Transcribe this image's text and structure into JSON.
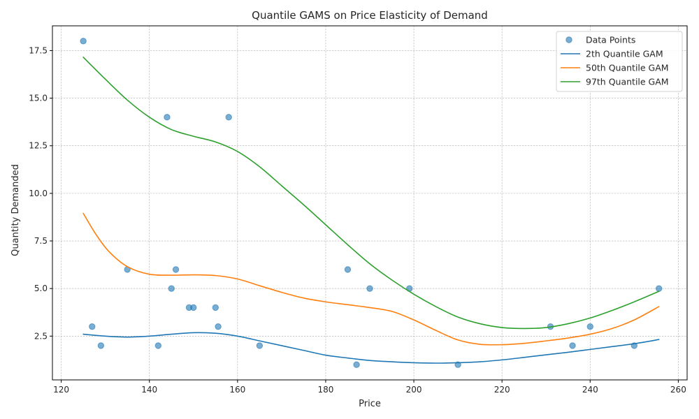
{
  "chart_data": {
    "type": "line",
    "title": "Quantile GAMS on Price Elasticity of Demand",
    "xlabel": "Price",
    "ylabel": "Quantity Demanded",
    "xlim": [
      118,
      262
    ],
    "ylim": [
      0.2,
      18.8
    ],
    "xticks": [
      120,
      140,
      160,
      180,
      200,
      220,
      240,
      260
    ],
    "yticks": [
      2.5,
      5.0,
      7.5,
      10.0,
      12.5,
      15.0,
      17.5
    ],
    "xtick_labels": [
      "120",
      "140",
      "160",
      "180",
      "200",
      "220",
      "240",
      "260"
    ],
    "ytick_labels": [
      "2.5",
      "5.0",
      "7.5",
      "10.0",
      "12.5",
      "15.0",
      "17.5"
    ],
    "grid": true,
    "legend_position": "top-right",
    "scatter": {
      "name": "Data Points",
      "color": "#1f77b4",
      "points": [
        [
          125,
          18
        ],
        [
          127,
          3
        ],
        [
          129,
          2
        ],
        [
          135,
          6
        ],
        [
          142,
          2
        ],
        [
          144,
          14
        ],
        [
          145,
          5
        ],
        [
          146,
          6
        ],
        [
          149,
          4
        ],
        [
          150,
          4
        ],
        [
          155,
          4
        ],
        [
          155.6,
          3
        ],
        [
          158,
          14
        ],
        [
          165,
          2
        ],
        [
          185,
          6
        ],
        [
          187,
          1
        ],
        [
          190,
          5
        ],
        [
          199,
          5
        ],
        [
          210,
          1
        ],
        [
          231,
          3
        ],
        [
          236,
          2
        ],
        [
          240,
          3
        ],
        [
          250,
          2
        ],
        [
          255.6,
          5
        ]
      ]
    },
    "series": [
      {
        "name": "2th Quantile GAM",
        "color": "#1f77b4",
        "x": [
          125,
          130,
          135,
          140,
          145,
          150,
          155,
          160,
          165,
          170,
          175,
          180,
          185,
          190,
          195,
          200,
          205,
          210,
          215,
          220,
          225,
          230,
          235,
          240,
          245,
          250,
          255.6
        ],
        "y": [
          2.6,
          2.5,
          2.45,
          2.5,
          2.6,
          2.68,
          2.65,
          2.5,
          2.25,
          2.0,
          1.75,
          1.5,
          1.35,
          1.22,
          1.15,
          1.1,
          1.08,
          1.1,
          1.15,
          1.25,
          1.38,
          1.52,
          1.65,
          1.8,
          1.95,
          2.1,
          2.32
        ]
      },
      {
        "name": "50th Quantile GAM",
        "color": "#ff7f0e",
        "x": [
          125,
          128,
          131,
          135,
          140,
          145,
          150,
          155,
          160,
          165,
          170,
          175,
          180,
          185,
          190,
          195,
          200,
          205,
          210,
          215,
          220,
          225,
          230,
          235,
          240,
          245,
          250,
          255.6
        ],
        "y": [
          8.95,
          7.8,
          6.9,
          6.15,
          5.75,
          5.7,
          5.72,
          5.68,
          5.5,
          5.15,
          4.8,
          4.5,
          4.3,
          4.15,
          4.0,
          3.8,
          3.35,
          2.8,
          2.3,
          2.07,
          2.05,
          2.12,
          2.25,
          2.4,
          2.6,
          2.9,
          3.35,
          4.05
        ]
      },
      {
        "name": "97th Quantile GAM",
        "color": "#2ca02c",
        "x": [
          125,
          130,
          135,
          140,
          145,
          150,
          155,
          160,
          165,
          170,
          175,
          180,
          185,
          190,
          195,
          200,
          205,
          210,
          215,
          220,
          225,
          230,
          235,
          240,
          245,
          250,
          255.6
        ],
        "y": [
          17.15,
          16.0,
          14.9,
          14.0,
          13.35,
          13.0,
          12.7,
          12.2,
          11.4,
          10.4,
          9.4,
          8.35,
          7.3,
          6.3,
          5.45,
          4.7,
          4.05,
          3.5,
          3.15,
          2.95,
          2.9,
          2.95,
          3.15,
          3.45,
          3.85,
          4.3,
          4.85
        ]
      }
    ]
  }
}
